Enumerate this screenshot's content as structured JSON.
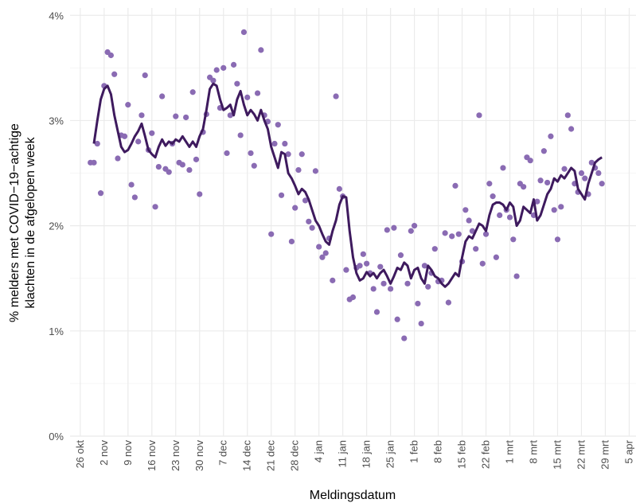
{
  "chart_data": {
    "type": "scatter",
    "xlabel": "Meldingsdatum",
    "ylabel": [
      "% melders met COVID−19−achtige",
      "klachten in de afgelopen week"
    ],
    "xlim": [
      "23 okt",
      "7 apr"
    ],
    "xticks": [
      "26 okt",
      "2 nov",
      "9 nov",
      "16 nov",
      "23 nov",
      "30 nov",
      "7 dec",
      "14 dec",
      "21 dec",
      "28 dec",
      "4 jan",
      "11 jan",
      "18 jan",
      "25 jan",
      "1 feb",
      "8 feb",
      "15 feb",
      "22 feb",
      "1 mrt",
      "8 mrt",
      "15 mrt",
      "22 mrt",
      "29 mrt",
      "5 apr"
    ],
    "ylim": [
      0,
      4.07
    ],
    "yticks": [
      {
        "value": 0,
        "label": "0%"
      },
      {
        "value": 1,
        "label": "1%"
      },
      {
        "value": 2,
        "label": "2%"
      },
      {
        "value": 3,
        "label": "3%"
      },
      {
        "value": 4,
        "label": "4%"
      }
    ],
    "grid": true,
    "x": [
      "29 okt",
      "30 okt",
      "31 okt",
      "1 nov",
      "2 nov",
      "3 nov",
      "4 nov",
      "5 nov",
      "6 nov",
      "7 nov",
      "8 nov",
      "9 nov",
      "10 nov",
      "11 nov",
      "12 nov",
      "13 nov",
      "14 nov",
      "15 nov",
      "16 nov",
      "17 nov",
      "18 nov",
      "19 nov",
      "20 nov",
      "21 nov",
      "22 nov",
      "23 nov",
      "24 nov",
      "25 nov",
      "26 nov",
      "27 nov",
      "28 nov",
      "29 nov",
      "30 nov",
      "1 dec",
      "2 dec",
      "3 dec",
      "4 dec",
      "5 dec",
      "6 dec",
      "7 dec",
      "8 dec",
      "9 dec",
      "10 dec",
      "11 dec",
      "12 dec",
      "13 dec",
      "14 dec",
      "15 dec",
      "16 dec",
      "17 dec",
      "18 dec",
      "19 dec",
      "20 dec",
      "21 dec",
      "22 dec",
      "23 dec",
      "24 dec",
      "25 dec",
      "26 dec",
      "27 dec",
      "28 dec",
      "29 dec",
      "30 dec",
      "31 dec",
      "1 jan",
      "2 jan",
      "3 jan",
      "4 jan",
      "5 jan",
      "6 jan",
      "7 jan",
      "8 jan",
      "9 jan",
      "10 jan",
      "11 jan",
      "12 jan",
      "13 jan",
      "14 jan",
      "15 jan",
      "16 jan",
      "17 jan",
      "18 jan",
      "19 jan",
      "20 jan",
      "21 jan",
      "22 jan",
      "23 jan",
      "24 jan",
      "25 jan",
      "26 jan",
      "27 jan",
      "28 jan",
      "29 jan",
      "30 jan",
      "31 jan",
      "1 feb",
      "2 feb",
      "3 feb",
      "4 feb",
      "5 feb",
      "6 feb",
      "7 feb",
      "8 feb",
      "9 feb",
      "10 feb",
      "11 feb",
      "12 feb",
      "13 feb",
      "14 feb",
      "15 feb",
      "16 feb",
      "17 feb",
      "18 feb",
      "19 feb",
      "20 feb",
      "21 feb",
      "22 feb",
      "23 feb",
      "24 feb",
      "25 feb",
      "26 feb",
      "27 feb",
      "28 feb",
      "1 mrt",
      "2 mrt",
      "3 mrt",
      "4 mrt",
      "5 mrt",
      "6 mrt",
      "7 mrt",
      "8 mrt",
      "9 mrt",
      "10 mrt",
      "11 mrt",
      "12 mrt",
      "13 mrt",
      "14 mrt",
      "15 mrt",
      "16 mrt",
      "17 mrt",
      "18 mrt",
      "19 mrt",
      "20 mrt",
      "21 mrt",
      "22 mrt",
      "23 mrt",
      "24 mrt",
      "25 mrt",
      "26 mrt",
      "27 mrt",
      "28 mrt"
    ],
    "series": [
      {
        "mark": "point",
        "color": "#8a6bb3",
        "values": [
          2.6,
          2.6,
          2.78,
          2.31,
          3.33,
          3.65,
          3.62,
          3.44,
          2.64,
          2.86,
          2.85,
          3.15,
          2.39,
          2.27,
          2.8,
          3.05,
          3.43,
          2.72,
          2.88,
          2.18,
          2.56,
          3.23,
          2.54,
          2.51,
          2.78,
          3.04,
          2.6,
          2.58,
          3.03,
          2.53,
          3.27,
          2.63,
          2.3,
          2.89,
          3.06,
          3.41,
          3.38,
          3.48,
          3.12,
          3.5,
          2.69,
          3.05,
          3.53,
          3.35,
          2.86,
          3.84,
          3.22,
          2.69,
          2.57,
          3.26,
          3.67,
          3.05,
          2.99,
          1.92,
          2.78,
          2.96,
          2.29,
          2.78,
          2.68,
          1.85,
          2.17,
          2.53,
          2.68,
          2.24,
          2.04,
          1.98,
          2.52,
          1.8,
          1.7,
          1.74,
          1.88,
          1.48,
          3.23,
          2.35,
          2.28,
          1.58,
          1.3,
          1.32,
          1.6,
          1.62,
          1.73,
          1.64,
          1.55,
          1.4,
          1.18,
          1.61,
          1.45,
          1.96,
          1.4,
          1.98,
          1.11,
          1.72,
          0.93,
          1.45,
          1.95,
          2.0,
          1.26,
          1.07,
          1.62,
          1.42,
          1.55,
          1.78,
          1.47,
          1.48,
          1.93,
          1.27,
          1.9,
          2.38,
          1.92,
          1.66,
          2.15,
          2.05,
          1.95,
          1.78,
          3.05,
          1.64,
          1.92,
          2.4,
          2.28,
          1.7,
          2.1,
          2.55,
          2.15,
          2.08,
          1.87,
          1.52,
          2.4,
          2.37,
          2.65,
          2.62,
          2.1,
          2.23,
          2.43,
          2.71,
          2.41,
          2.85,
          2.15,
          1.87,
          2.18,
          2.54,
          3.05,
          2.92,
          2.4,
          2.32,
          2.5,
          2.45,
          2.3,
          2.6,
          2.55,
          2.5,
          2.4
        ]
      },
      {
        "mark": "line",
        "color": "#3e1a5e",
        "values": [
          null,
          2.78,
          3.0,
          3.2,
          3.3,
          3.33,
          3.25,
          3.05,
          2.9,
          2.75,
          2.7,
          2.72,
          2.78,
          2.85,
          2.9,
          2.97,
          2.85,
          2.72,
          2.68,
          2.65,
          2.75,
          2.82,
          2.76,
          2.8,
          2.78,
          2.82,
          2.8,
          2.85,
          2.8,
          2.75,
          2.8,
          2.75,
          2.85,
          2.92,
          3.1,
          3.3,
          3.35,
          3.33,
          3.2,
          3.1,
          3.12,
          3.15,
          3.05,
          3.2,
          3.28,
          3.15,
          3.05,
          3.1,
          3.06,
          3.0,
          3.1,
          3.0,
          2.92,
          2.75,
          2.65,
          2.55,
          2.7,
          2.68,
          2.5,
          2.45,
          2.38,
          2.3,
          2.35,
          2.32,
          2.25,
          2.15,
          2.05,
          2.0,
          1.92,
          1.85,
          1.82,
          1.95,
          2.05,
          2.2,
          2.28,
          2.27,
          1.95,
          1.7,
          1.55,
          1.48,
          1.5,
          1.56,
          1.52,
          1.55,
          1.5,
          1.55,
          1.58,
          1.52,
          1.45,
          1.52,
          1.6,
          1.58,
          1.65,
          1.62,
          1.5,
          1.58,
          1.6,
          1.5,
          1.45,
          1.62,
          1.58,
          1.52,
          1.5,
          1.45,
          1.42,
          1.45,
          1.5,
          1.55,
          1.52,
          1.7,
          1.85,
          1.9,
          1.88,
          1.95,
          2.02,
          2.0,
          1.95,
          2.1,
          2.2,
          2.22,
          2.22,
          2.2,
          2.15,
          2.22,
          2.18,
          2.0,
          2.05,
          2.18,
          2.15,
          2.12,
          2.25,
          2.05,
          2.1,
          2.2,
          2.3,
          2.35,
          2.45,
          2.42,
          2.48,
          2.45,
          2.5,
          2.55,
          2.52,
          2.35,
          2.3,
          2.25,
          2.4,
          2.5,
          2.6,
          2.63,
          2.65
        ]
      }
    ]
  }
}
